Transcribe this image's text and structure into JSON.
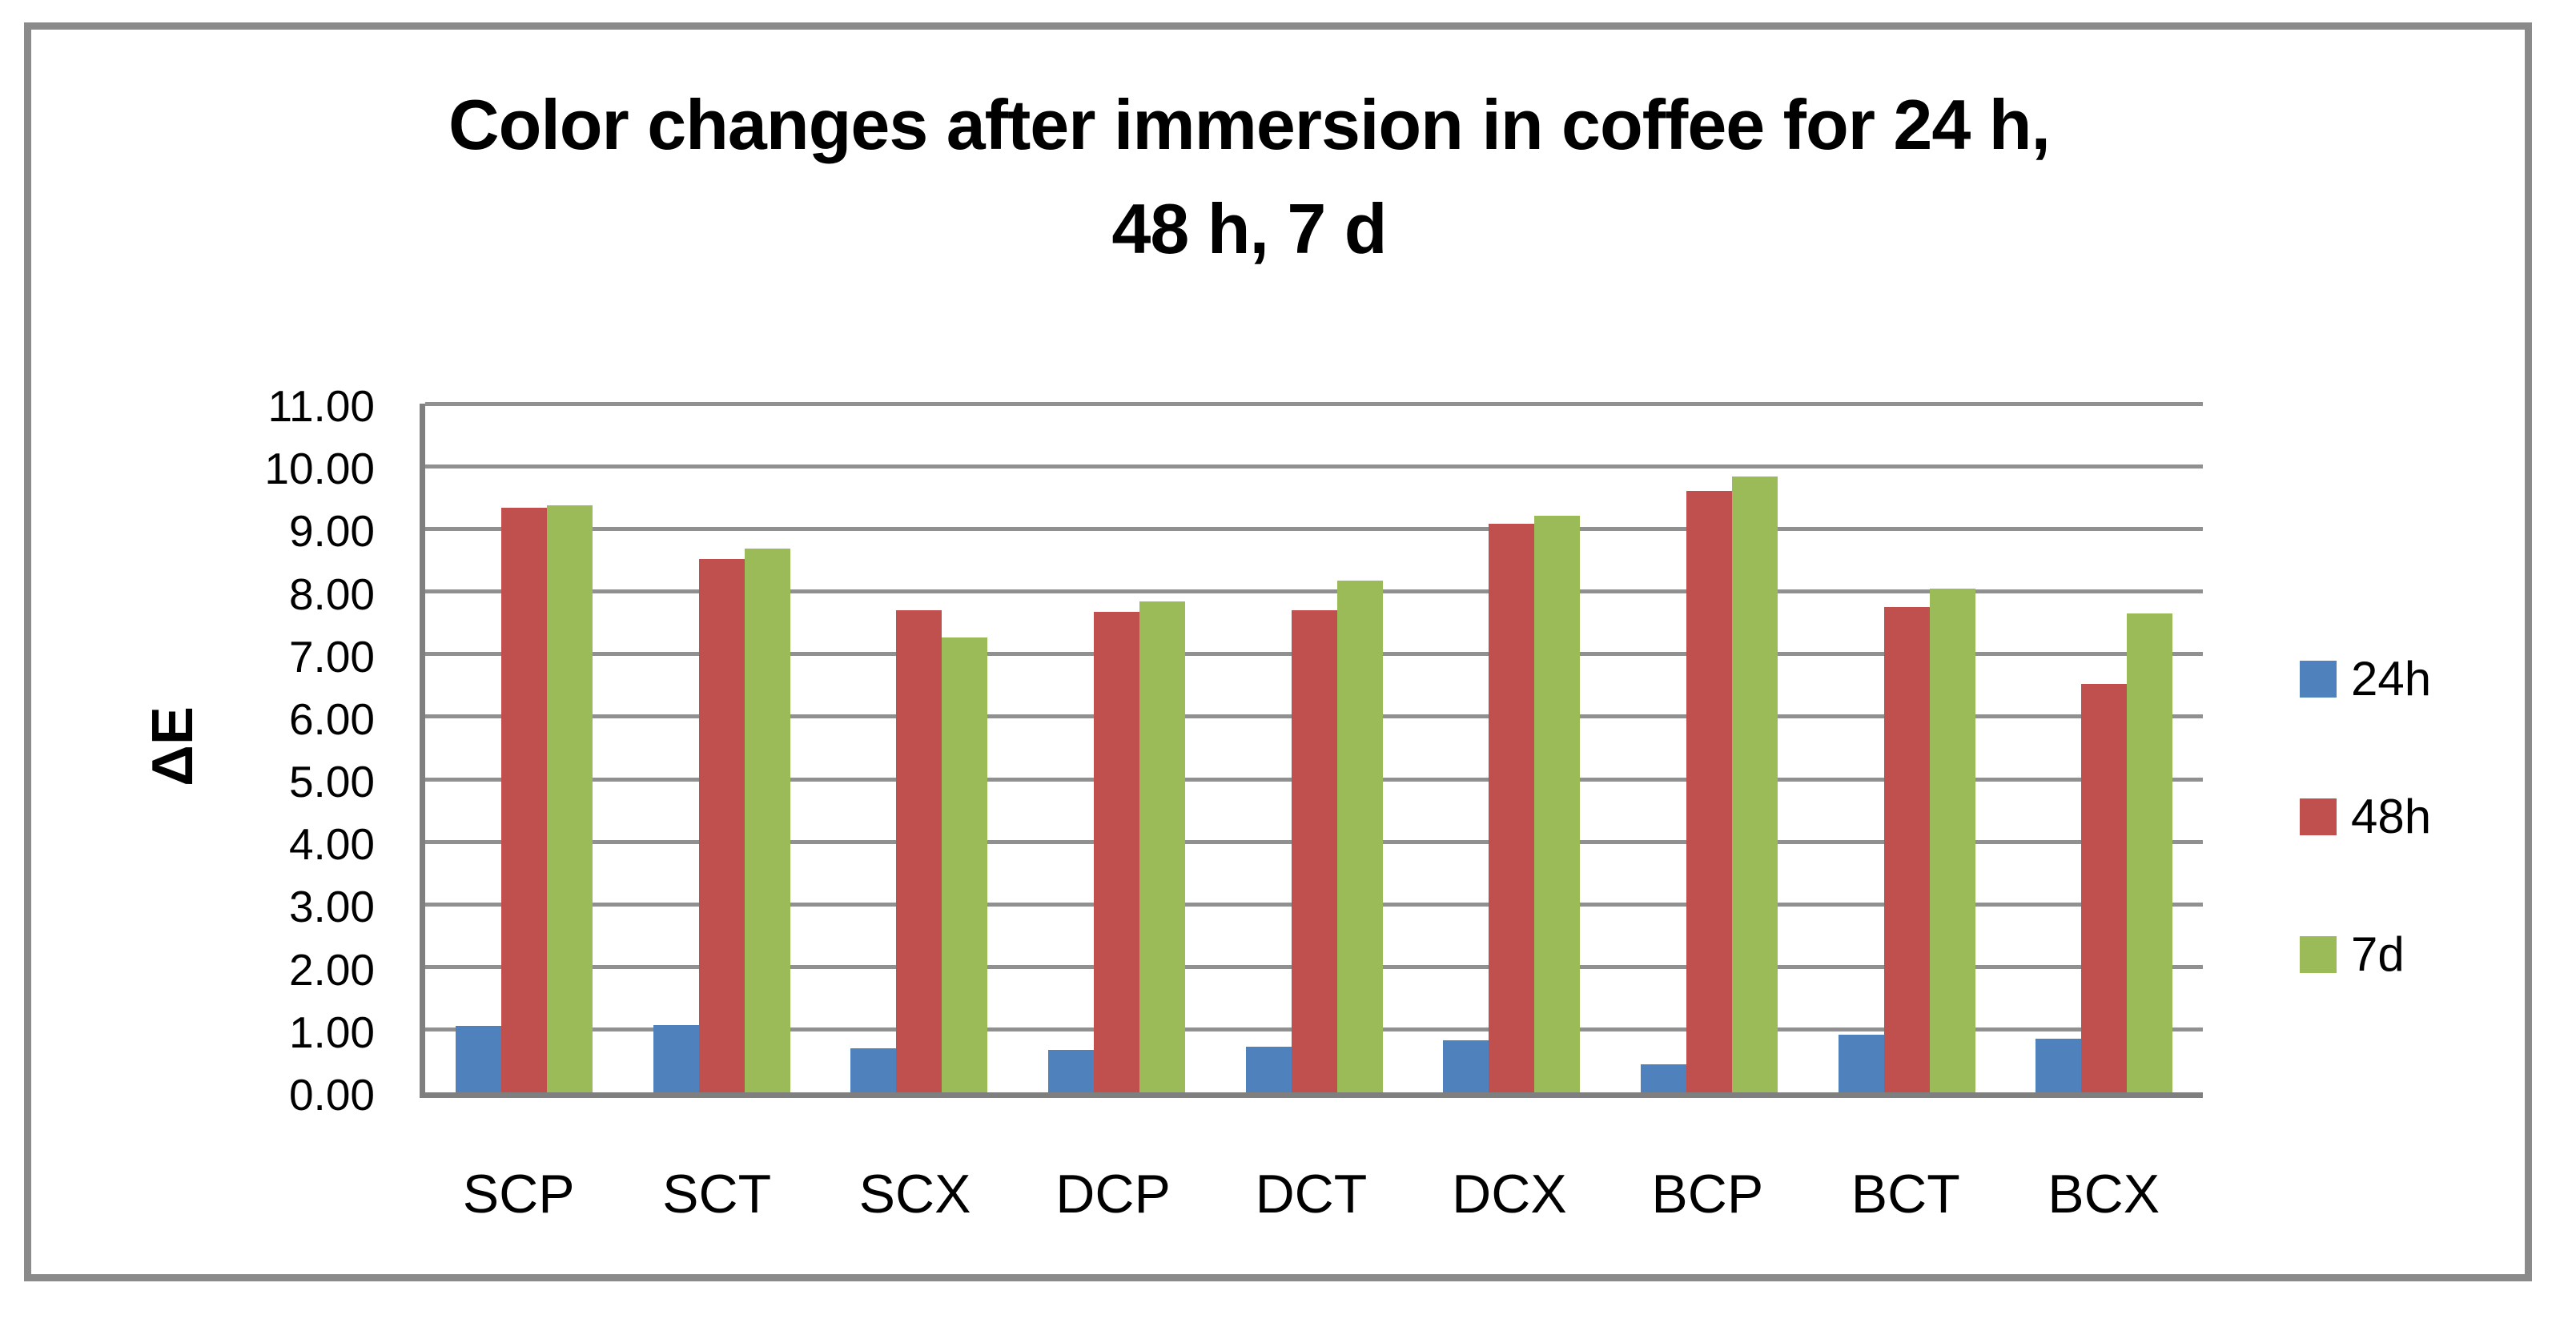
{
  "title": {
    "line1": "Color changes after immersion in coffee for 24 h,",
    "line2": "48 h, 7 d"
  },
  "y_axis": {
    "label": "ΔE",
    "tick_labels": [
      "0.00",
      "1.00",
      "2.00",
      "3.00",
      "4.00",
      "5.00",
      "6.00",
      "7.00",
      "8.00",
      "9.00",
      "10.00",
      "11.00"
    ]
  },
  "x_axis": {
    "categories": [
      "SCP",
      "SCT",
      "SCX",
      "DCP",
      "DCT",
      "DCX",
      "BCP",
      "BCT",
      "BCX"
    ]
  },
  "legend": {
    "position": "right",
    "items": [
      {
        "label": "24h",
        "color": "#4F81BD"
      },
      {
        "label": "48h",
        "color": "#C0504D"
      },
      {
        "label": "7d",
        "color": "#9BBB59"
      }
    ]
  },
  "colors": {
    "grid": "#909090",
    "axis": "#7F7F7F",
    "frame": "#8A8A8A",
    "text": "#000000",
    "background": "#FFFFFF",
    "series_blue": "#4F81BD",
    "series_red": "#C0504D",
    "series_green": "#9BBB59"
  },
  "chart_data": {
    "type": "bar",
    "title": "Color changes after immersion in coffee for 24 h, 48 h, 7 d",
    "categories": [
      "SCP",
      "SCT",
      "SCX",
      "DCP",
      "DCT",
      "DCX",
      "BCP",
      "BCT",
      "BCX"
    ],
    "series": [
      {
        "name": "24h",
        "color": "#4F81BD",
        "values": [
          1.06,
          1.07,
          0.7,
          0.68,
          0.73,
          0.83,
          0.45,
          0.92,
          0.86
        ]
      },
      {
        "name": "48h",
        "color": "#C0504D",
        "values": [
          9.34,
          8.52,
          7.7,
          7.68,
          7.7,
          9.08,
          9.6,
          7.75,
          6.52
        ]
      },
      {
        "name": "7d",
        "color": "#9BBB59",
        "values": [
          9.38,
          8.68,
          7.26,
          7.84,
          8.17,
          9.21,
          9.83,
          8.05,
          7.65
        ]
      }
    ],
    "xlabel": "",
    "ylabel": "ΔE",
    "ylim": [
      0,
      11
    ],
    "ytick_step": 1,
    "grid": true,
    "legend_position": "right"
  }
}
